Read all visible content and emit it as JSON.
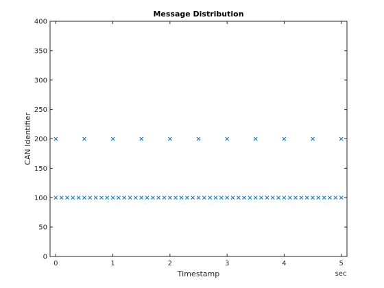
{
  "chart_data": {
    "type": "scatter",
    "title": "Message Distribution",
    "xlabel": "Timestamp",
    "ylabel": "CAN Identifier",
    "x_unit": "sec",
    "xlim": [
      -0.1,
      5.1
    ],
    "ylim": [
      0,
      400
    ],
    "xticks": [
      0,
      1,
      2,
      3,
      4,
      5
    ],
    "yticks": [
      0,
      50,
      100,
      150,
      200,
      250,
      300,
      350,
      400
    ],
    "grid": false,
    "marker": "x",
    "marker_color": "#0072bd",
    "series": [
      {
        "x": [
          0,
          0.1,
          0.2,
          0.3,
          0.4,
          0.5,
          0.6,
          0.7,
          0.8,
          0.9,
          1.0,
          1.1,
          1.2,
          1.3,
          1.4,
          1.5,
          1.6,
          1.7,
          1.8,
          1.9,
          2.0,
          2.1,
          2.2,
          2.3,
          2.4,
          2.5,
          2.6,
          2.7,
          2.8,
          2.9,
          3.0,
          3.1,
          3.2,
          3.3,
          3.4,
          3.5,
          3.6,
          3.7,
          3.8,
          3.9,
          4.0,
          4.1,
          4.2,
          4.3,
          4.4,
          4.5,
          4.6,
          4.7,
          4.8,
          4.9,
          5.0
        ],
        "y_value": 100
      },
      {
        "x": [
          0,
          0.5,
          1.0,
          1.5,
          2.0,
          2.5,
          3.0,
          3.5,
          4.0,
          4.5,
          5.0
        ],
        "y_value": 200
      }
    ]
  }
}
